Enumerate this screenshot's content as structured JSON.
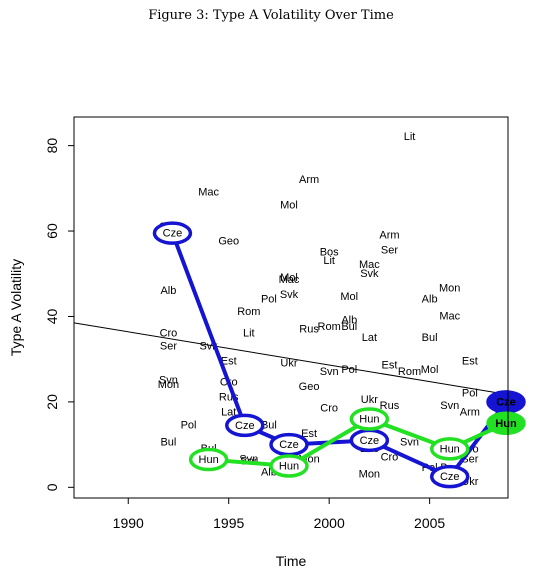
{
  "figure_title": "Figure 3: Type A Volatility Over Time",
  "colors": {
    "cze": "#1414d2",
    "hun": "#22e022",
    "trend": "#000000"
  },
  "chart_data": {
    "type": "scatter",
    "title": "Figure 3: Type A Volatility Over Time",
    "xlabel": "Time",
    "ylabel": "Type A Volatility",
    "xlim": [
      1987.3,
      2008.9
    ],
    "ylim": [
      -2.5,
      86.7
    ],
    "xticks": [
      1990,
      1995,
      2000,
      2005
    ],
    "yticks": [
      0,
      20,
      40,
      60,
      80
    ],
    "grid": false,
    "legend": "none",
    "points": [
      {
        "label": "Lit",
        "x": 2004,
        "y": 82
      },
      {
        "label": "Arm",
        "x": 1999,
        "y": 72
      },
      {
        "label": "Mac",
        "x": 1994,
        "y": 69
      },
      {
        "label": "Mol",
        "x": 1998,
        "y": 66
      },
      {
        "label": "Svk",
        "x": 1992,
        "y": 61
      },
      {
        "label": "Arm",
        "x": 2003,
        "y": 59
      },
      {
        "label": "Geo",
        "x": 1995,
        "y": 57.5
      },
      {
        "label": "Bos",
        "x": 2000,
        "y": 55
      },
      {
        "label": "Ser",
        "x": 2003,
        "y": 55.5
      },
      {
        "label": "Lit",
        "x": 2000,
        "y": 53
      },
      {
        "label": "Mac",
        "x": 2002,
        "y": 52
      },
      {
        "label": "Svk",
        "x": 2002,
        "y": 50
      },
      {
        "label": "Mol",
        "x": 1998,
        "y": 49
      },
      {
        "label": "Mac",
        "x": 1998,
        "y": 48.5
      },
      {
        "label": "Alb",
        "x": 1992,
        "y": 46
      },
      {
        "label": "Mon",
        "x": 2006,
        "y": 46.5
      },
      {
        "label": "Svk",
        "x": 1998,
        "y": 45
      },
      {
        "label": "Mol",
        "x": 2001,
        "y": 44.5
      },
      {
        "label": "Pol",
        "x": 1997,
        "y": 44
      },
      {
        "label": "Alb",
        "x": 2005,
        "y": 44
      },
      {
        "label": "Rom",
        "x": 1996,
        "y": 41
      },
      {
        "label": "Mac",
        "x": 2006,
        "y": 40
      },
      {
        "label": "Alb",
        "x": 2001,
        "y": 39
      },
      {
        "label": "Bul",
        "x": 2001,
        "y": 37.5
      },
      {
        "label": "Rus",
        "x": 1999,
        "y": 37
      },
      {
        "label": "Rom",
        "x": 2000,
        "y": 37.5
      },
      {
        "label": "Cro",
        "x": 1992,
        "y": 36
      },
      {
        "label": "Lit",
        "x": 1996,
        "y": 36
      },
      {
        "label": "Lat",
        "x": 2002,
        "y": 35
      },
      {
        "label": "Bul",
        "x": 2005,
        "y": 35
      },
      {
        "label": "Ser",
        "x": 1992,
        "y": 33
      },
      {
        "label": "Svk",
        "x": 1994,
        "y": 33
      },
      {
        "label": "Est",
        "x": 1995,
        "y": 29.5
      },
      {
        "label": "Ukr",
        "x": 1998,
        "y": 29
      },
      {
        "label": "Est",
        "x": 2003,
        "y": 28.5
      },
      {
        "label": "Est",
        "x": 2007,
        "y": 29.5
      },
      {
        "label": "Svn",
        "x": 2000,
        "y": 27
      },
      {
        "label": "Pol",
        "x": 2001,
        "y": 27.5
      },
      {
        "label": "Rom",
        "x": 2004,
        "y": 27
      },
      {
        "label": "Mol",
        "x": 2005,
        "y": 27.5
      },
      {
        "label": "Svn",
        "x": 1992,
        "y": 25
      },
      {
        "label": "Mon",
        "x": 1992,
        "y": 24
      },
      {
        "label": "Cro",
        "x": 1995,
        "y": 24.5
      },
      {
        "label": "Geo",
        "x": 1999,
        "y": 23.5
      },
      {
        "label": "Pol",
        "x": 2007,
        "y": 22
      },
      {
        "label": "Rus",
        "x": 1995,
        "y": 21
      },
      {
        "label": "Ukr",
        "x": 2002,
        "y": 20.5
      },
      {
        "label": "Rus",
        "x": 2003,
        "y": 19
      },
      {
        "label": "Svn",
        "x": 2006,
        "y": 19
      },
      {
        "label": "Cro",
        "x": 2000,
        "y": 18.5
      },
      {
        "label": "Lat",
        "x": 1995,
        "y": 17.5
      },
      {
        "label": "Arm",
        "x": 2007,
        "y": 17.5
      },
      {
        "label": "Pol",
        "x": 1993,
        "y": 14.5
      },
      {
        "label": "Bul",
        "x": 1997,
        "y": 14.5
      },
      {
        "label": "Est",
        "x": 1999,
        "y": 12.5
      },
      {
        "label": "Svn",
        "x": 2004,
        "y": 10.5
      },
      {
        "label": "Bul",
        "x": 1992,
        "y": 10.5
      },
      {
        "label": "Bos",
        "x": 2002,
        "y": 9
      },
      {
        "label": "Lat",
        "x": 2006,
        "y": 9.5
      },
      {
        "label": "Cro",
        "x": 2007,
        "y": 8.8
      },
      {
        "label": "Ukr",
        "x": 2006,
        "y": 8
      },
      {
        "label": "Bul",
        "x": 1994,
        "y": 9
      },
      {
        "label": "Cro",
        "x": 2003,
        "y": 7
      },
      {
        "label": "Ser",
        "x": 2007,
        "y": 6.5
      },
      {
        "label": "Svn",
        "x": 1996,
        "y": 6.5
      },
      {
        "label": "Ser",
        "x": 1996,
        "y": 6
      },
      {
        "label": "Mon",
        "x": 1999,
        "y": 6.5
      },
      {
        "label": "Alb",
        "x": 1997,
        "y": 3.5
      },
      {
        "label": "Pol",
        "x": 2005,
        "y": 4.5
      },
      {
        "label": "Bos",
        "x": 2006,
        "y": 4.5
      },
      {
        "label": "Mon",
        "x": 2002,
        "y": 3
      },
      {
        "label": "Ukr",
        "x": 2007,
        "y": 1.3
      }
    ],
    "series": [
      {
        "name": "Cze",
        "color": "#1414d2",
        "points": [
          [
            1992.2,
            59.5
          ],
          [
            1995.8,
            14.5
          ],
          [
            1998,
            10
          ],
          [
            2002,
            11
          ],
          [
            2006,
            2.5
          ],
          [
            2008.8,
            20
          ]
        ]
      },
      {
        "name": "Hun",
        "color": "#22e022",
        "points": [
          [
            1994,
            6.5
          ],
          [
            1998,
            5
          ],
          [
            2002,
            16
          ],
          [
            2006,
            9
          ],
          [
            2008.8,
            15
          ]
        ]
      }
    ],
    "trend_line": {
      "points": [
        [
          1987.3,
          38.5
        ],
        [
          2008.8,
          21.8
        ]
      ]
    }
  }
}
